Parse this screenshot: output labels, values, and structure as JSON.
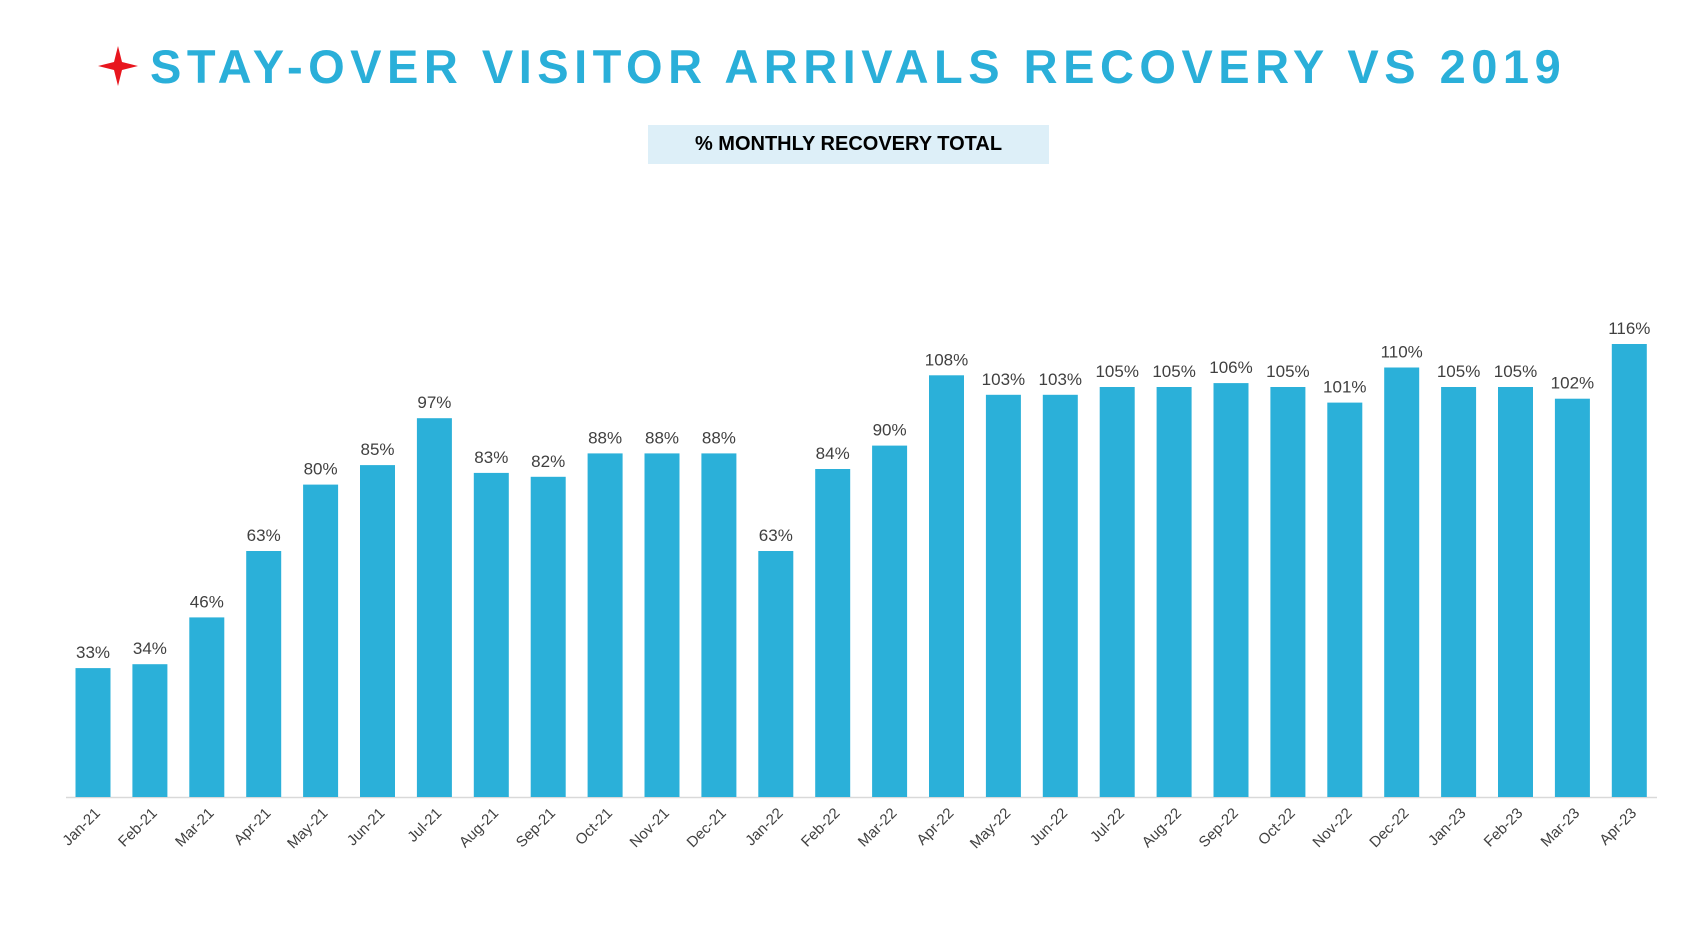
{
  "title": "STAY-OVER VISITOR ARRIVALS RECOVERY VS 2019",
  "subtitle": "% MONTHLY RECOVERY TOTAL",
  "icons": {
    "star": "red-four-point-star-icon"
  },
  "colors": {
    "title": "#2aafd9",
    "bar": "#2bb0d9",
    "subtitle_bg": "#ddeff8",
    "star": "#e8161e",
    "axis": "#d9d9d9",
    "label": "#404040"
  },
  "chart_data": {
    "type": "bar",
    "title": "% MONTHLY RECOVERY TOTAL",
    "xlabel": "",
    "ylabel": "",
    "ylim": [
      0,
      120
    ],
    "grid": false,
    "legend": "none",
    "categories": [
      "Jan-21",
      "Feb-21",
      "Mar-21",
      "Apr-21",
      "May-21",
      "Jun-21",
      "Jul-21",
      "Aug-21",
      "Sep-21",
      "Oct-21",
      "Nov-21",
      "Dec-21",
      "Jan-22",
      "Feb-22",
      "Mar-22",
      "Apr-22",
      "May-22",
      "Jun-22",
      "Jul-22",
      "Aug-22",
      "Sep-22",
      "Oct-22",
      "Nov-22",
      "Dec-22",
      "Jan-23",
      "Feb-23",
      "Mar-23",
      "Apr-23"
    ],
    "values": [
      33,
      34,
      46,
      63,
      80,
      85,
      97,
      83,
      82,
      88,
      88,
      88,
      63,
      84,
      90,
      108,
      103,
      103,
      105,
      105,
      106,
      105,
      101,
      110,
      105,
      105,
      102,
      116
    ],
    "data_labels": [
      "33%",
      "34%",
      "46%",
      "63%",
      "80%",
      "85%",
      "97%",
      "83%",
      "82%",
      "88%",
      "88%",
      "88%",
      "63%",
      "84%",
      "90%",
      "108%",
      "103%",
      "103%",
      "105%",
      "105%",
      "106%",
      "105%",
      "101%",
      "110%",
      "105%",
      "105%",
      "102%",
      "116%"
    ]
  }
}
